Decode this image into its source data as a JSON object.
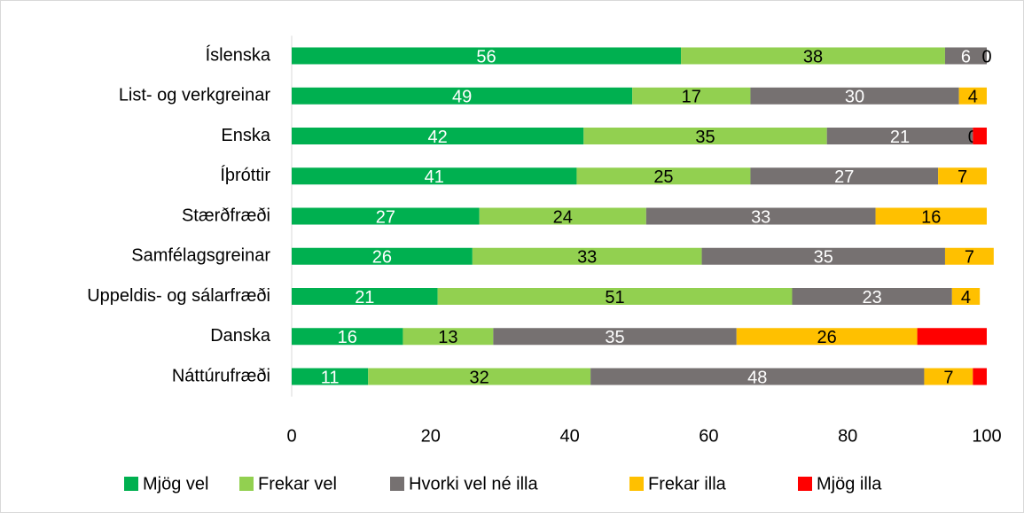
{
  "chart_data": {
    "type": "stacked_bar_horizontal",
    "categories": [
      "Íslenska",
      "List- og verkgreinar",
      "Enska",
      "Íþróttir",
      "Stærðfræði",
      "Samfélagsgreinar",
      "Uppeldis- og sálarfræði",
      "Danska",
      "Náttúrufræði"
    ],
    "series": [
      {
        "name": "Mjög vel",
        "color": "#00b050",
        "label_color": "#ffffff",
        "values": [
          56,
          49,
          42,
          41,
          27,
          26,
          21,
          16,
          11
        ]
      },
      {
        "name": "Frekar vel",
        "color": "#92d050",
        "label_color": "#000000",
        "values": [
          38,
          17,
          35,
          25,
          24,
          33,
          51,
          13,
          32
        ]
      },
      {
        "name": "Hvorki vel né illa",
        "color": "#767171",
        "label_color": "#ffffff",
        "values": [
          6,
          30,
          21,
          27,
          33,
          35,
          23,
          35,
          48
        ]
      },
      {
        "name": "Frekar illa",
        "color": "#ffc000",
        "label_color": "#000000",
        "values": [
          0,
          4,
          0,
          7,
          16,
          7,
          4,
          26,
          7
        ]
      },
      {
        "name": "Mjög illa",
        "color": "#ff0000",
        "label_color": "#000000",
        "values": [
          0,
          0,
          2,
          0,
          0,
          0,
          0,
          10,
          2
        ],
        "value_labels": [
          null,
          null,
          null,
          null,
          null,
          null,
          null,
          null,
          null
        ]
      }
    ],
    "xlim": [
      0,
      100
    ],
    "xticks": [
      0,
      20,
      40,
      60,
      80,
      100
    ],
    "legend": "bottom"
  }
}
